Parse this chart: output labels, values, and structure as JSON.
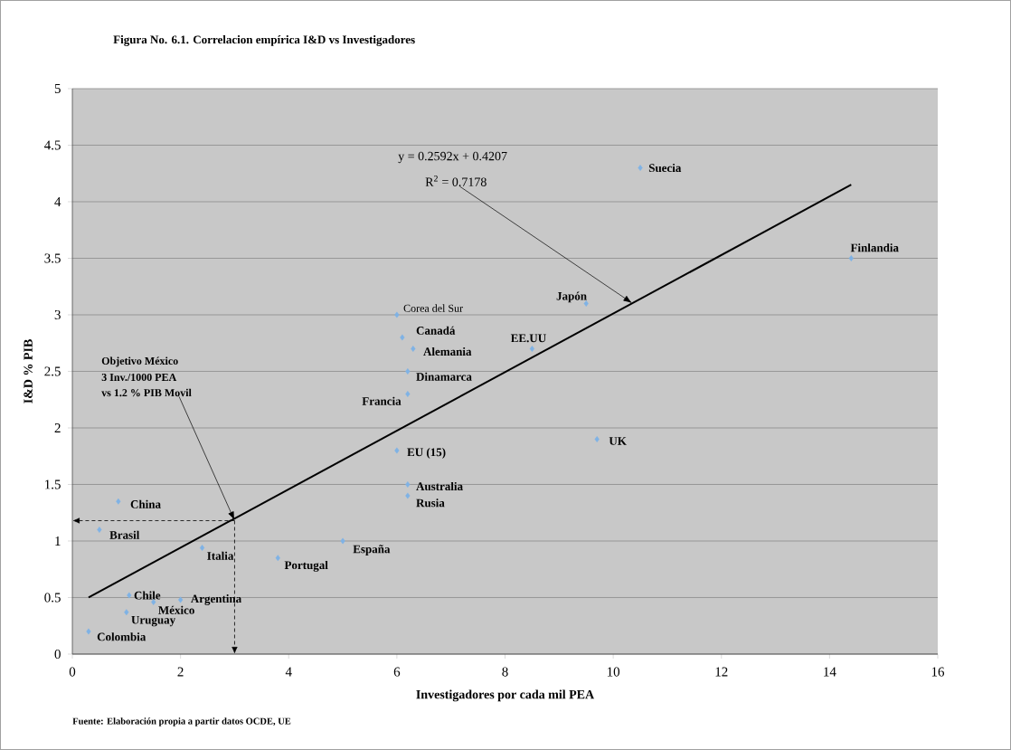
{
  "chart_data": {
    "type": "scatter",
    "title": "Figura No.  6.1. Correlacion empírica I&D vs Investigadores",
    "xlabel": "Investigadores por cada mil PEA",
    "ylabel": "I&D % PIB",
    "xlim": [
      0,
      16
    ],
    "xticks": [
      0,
      2,
      4,
      6,
      8,
      10,
      12,
      14,
      16
    ],
    "ylim": [
      0,
      5
    ],
    "yticks": [
      0,
      0.5,
      1,
      1.5,
      2,
      2.5,
      3,
      3.5,
      4,
      4.5,
      5
    ],
    "grid": "y",
    "ref_lines": [
      {
        "axis": "x",
        "value": 3,
        "color": "#000000",
        "line_style": "dashed"
      },
      {
        "axis": "y",
        "value": 1.18,
        "color": "#000000",
        "line_style": "dashed"
      }
    ],
    "series": [
      {
        "type": "scatter",
        "color": "#7fb2e5",
        "marker": "diamond",
        "x": [
          0.85,
          0.5,
          0.3,
          1.0,
          1.05,
          1.5,
          2.0,
          2.4,
          3.8,
          5.0,
          6.0,
          6.1,
          6.3,
          6.2,
          6.2,
          6.0,
          6.2,
          6.2,
          8.5,
          9.7,
          9.5,
          10.5,
          14.4
        ],
        "values": [
          1.35,
          1.1,
          0.2,
          0.37,
          0.52,
          0.46,
          0.48,
          0.94,
          0.85,
          1.0,
          3.0,
          2.8,
          2.7,
          2.5,
          2.3,
          1.8,
          1.5,
          1.4,
          2.7,
          1.9,
          3.1,
          4.3,
          3.5
        ]
      },
      {
        "type": "line",
        "color": "#000000",
        "line_style": "solid",
        "x": [
          0.3,
          14.4
        ],
        "values": [
          0.5,
          4.15
        ]
      }
    ],
    "annotations": [
      "Objetivo México",
      "3 Inv./1000 PEA",
      "vs 1.2 % PIB Movil",
      "y = 0.2592x + 0.4207",
      "R$^{2}$ = 0.7178",
      "Fuente: Elaboración propia a partir datos OCDE, UE",
      {
        "text": "China",
        "x": 0.85,
        "y": 1.35
      },
      {
        "text": "Brasil",
        "x": 0.5,
        "y": 1.1
      },
      {
        "text": "Colombia",
        "x": 0.3,
        "y": 0.2
      },
      {
        "text": "Uruguay",
        "x": 1.0,
        "y": 0.37
      },
      {
        "text": "Chile",
        "x": 1.05,
        "y": 0.52
      },
      {
        "text": "México",
        "x": 1.5,
        "y": 0.46
      },
      {
        "text": "Argentina",
        "x": 2.0,
        "y": 0.48
      },
      {
        "text": "Italia",
        "x": 2.4,
        "y": 0.94
      },
      {
        "text": "Portugal",
        "x": 3.8,
        "y": 0.85
      },
      {
        "text": "España",
        "x": 5.0,
        "y": 1.0
      },
      {
        "text": "Corea del Sur",
        "x": 6.0,
        "y": 3.0
      },
      {
        "text": "Canadá",
        "x": 6.1,
        "y": 2.8
      },
      {
        "text": "Alemania",
        "x": 6.3,
        "y": 2.7
      },
      {
        "text": "Dinamarca",
        "x": 6.2,
        "y": 2.5
      },
      {
        "text": "Francia",
        "x": 6.2,
        "y": 2.3
      },
      {
        "text": "EU (15)",
        "x": 6.0,
        "y": 1.8
      },
      {
        "text": "Australia",
        "x": 6.2,
        "y": 1.5
      },
      {
        "text": "Rusia",
        "x": 6.2,
        "y": 1.4
      },
      {
        "text": "EE.UU",
        "x": 8.5,
        "y": 2.7
      },
      {
        "text": "UK",
        "x": 9.7,
        "y": 1.9
      },
      {
        "text": "Japón",
        "x": 9.5,
        "y": 3.1
      },
      {
        "text": "Suecia",
        "x": 10.5,
        "y": 4.3
      },
      {
        "text": "Finlandia",
        "x": 14.4,
        "y": 3.5
      }
    ]
  }
}
